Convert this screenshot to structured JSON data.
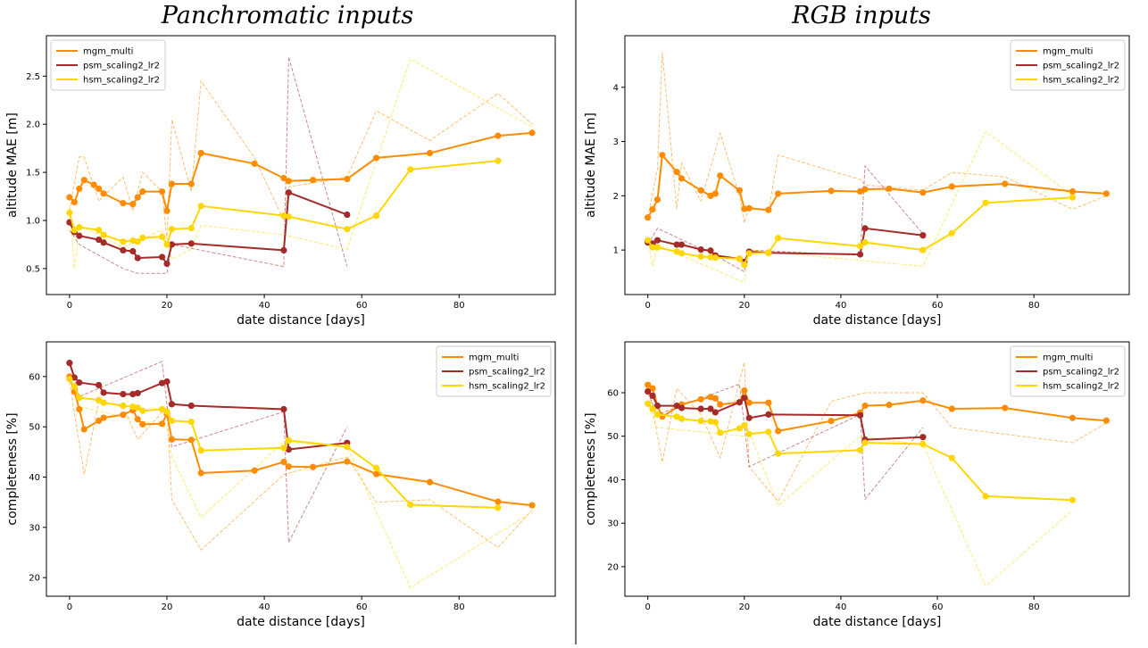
{
  "column_titles": [
    "Panchromatic inputs",
    "RGB inputs"
  ],
  "chart_data": [
    {
      "type": "line",
      "xlabel": "date distance [days]",
      "ylabel": "altitude MAE [m]",
      "legend": "upper left",
      "xlim": [
        -4.75,
        99.75
      ],
      "xticks": [
        0,
        20,
        40,
        60,
        80
      ],
      "ylim": [
        0.23,
        2.92
      ],
      "yticks": [
        0.5,
        {
          "value": 1,
          "label": "1.0"
        },
        1.5,
        {
          "value": 2,
          "label": "2.0"
        },
        2.5
      ],
      "series": [
        {
          "name": "mgm_multi",
          "color": "#ff8c00",
          "x": [
            0,
            1,
            2,
            3,
            5,
            6,
            7,
            11,
            13,
            14,
            15,
            19,
            20,
            21,
            25,
            27,
            38,
            44,
            45,
            50,
            57,
            63,
            74,
            88,
            95
          ],
          "values": [
            1.24,
            1.19,
            1.33,
            1.42,
            1.37,
            1.33,
            1.28,
            1.18,
            1.17,
            1.24,
            1.3,
            1.3,
            1.1,
            1.38,
            1.38,
            1.7,
            1.59,
            1.44,
            1.41,
            1.42,
            1.43,
            1.65,
            1.7,
            1.88,
            1.91
          ]
        },
        {
          "name": "psm_scaling2_lr2",
          "color": "#a52a2a",
          "x": [
            0,
            1,
            2,
            6,
            7,
            11,
            13,
            14,
            19,
            20,
            21,
            25,
            44,
            45,
            57
          ],
          "values": [
            0.98,
            0.88,
            0.84,
            0.8,
            0.77,
            0.69,
            0.68,
            0.61,
            0.62,
            0.55,
            0.75,
            0.76,
            0.69,
            1.29,
            1.06
          ]
        },
        {
          "name": "hsm_scaling2_lr2",
          "color": "#ffd700",
          "x": [
            0,
            1,
            2,
            6,
            7,
            11,
            13,
            14,
            15,
            19,
            20,
            21,
            25,
            27,
            44,
            45,
            57,
            63,
            70,
            88
          ],
          "values": [
            1.08,
            0.9,
            0.93,
            0.9,
            0.85,
            0.78,
            0.79,
            0.78,
            0.82,
            0.83,
            0.75,
            0.91,
            0.92,
            1.15,
            1.05,
            1.04,
            0.91,
            1.05,
            1.53,
            1.62
          ]
        },
        {
          "style": "dashed",
          "color": "#ff8c00",
          "x": [
            0,
            2,
            3,
            6,
            11,
            13,
            15,
            19,
            20,
            21,
            25,
            27,
            38,
            44,
            45,
            57,
            63,
            74,
            88,
            95
          ],
          "values": [
            1.1,
            1.66,
            1.66,
            1.2,
            1.45,
            1.1,
            1.5,
            1.3,
            0.8,
            2.05,
            1.3,
            2.45,
            1.65,
            1.0,
            1.35,
            1.45,
            2.14,
            1.83,
            2.32,
            2.0
          ]
        },
        {
          "style": "dashed",
          "color": "#a52a2a",
          "x": [
            0,
            2,
            11,
            14,
            20,
            21,
            44,
            45,
            57
          ],
          "values": [
            0.9,
            0.75,
            0.5,
            0.45,
            0.45,
            0.75,
            0.52,
            2.7,
            0.52
          ]
        },
        {
          "style": "dashed",
          "color": "#ffd700",
          "x": [
            0,
            1,
            2,
            11,
            19,
            21,
            25,
            27,
            44,
            57,
            70,
            95
          ],
          "values": [
            1.15,
            0.5,
            0.95,
            0.72,
            0.9,
            0.6,
            0.7,
            0.95,
            0.85,
            0.7,
            2.68,
            1.97
          ]
        }
      ]
    },
    {
      "type": "line",
      "xlabel": "date distance [days]",
      "ylabel": "altitude MAE [m]",
      "legend": "upper right",
      "xlim": [
        -4.75,
        99.75
      ],
      "xticks": [
        0,
        20,
        40,
        60,
        80
      ],
      "ylim": [
        0.18,
        4.95
      ],
      "yticks": [
        1,
        2,
        3,
        4
      ],
      "series": [
        {
          "name": "mgm_multi",
          "color": "#ff8c00",
          "x": [
            0,
            1,
            2,
            3,
            6,
            7,
            11,
            13,
            14,
            15,
            19,
            20,
            21,
            25,
            27,
            38,
            44,
            45,
            50,
            57,
            63,
            74,
            88,
            95
          ],
          "values": [
            1.6,
            1.75,
            1.93,
            2.75,
            2.44,
            2.32,
            2.1,
            2.0,
            2.04,
            2.37,
            2.1,
            1.76,
            1.77,
            1.74,
            2.04,
            2.09,
            2.08,
            2.12,
            2.13,
            2.06,
            2.17,
            2.22,
            2.08,
            2.04
          ]
        },
        {
          "name": "psm_scaling2_lr2",
          "color": "#a52a2a",
          "x": [
            0,
            1,
            2,
            6,
            7,
            11,
            13,
            14,
            19,
            20,
            21,
            25,
            44,
            45,
            57
          ],
          "values": [
            1.14,
            1.12,
            1.18,
            1.1,
            1.1,
            1.01,
            0.99,
            0.9,
            0.84,
            0.78,
            0.97,
            0.95,
            0.92,
            1.4,
            1.27
          ]
        },
        {
          "name": "hsm_scaling2_lr2",
          "color": "#ffd700",
          "x": [
            0,
            1,
            2,
            6,
            7,
            11,
            13,
            14,
            19,
            20,
            21,
            25,
            27,
            44,
            45,
            57,
            63,
            70,
            88
          ],
          "values": [
            1.18,
            1.05,
            1.05,
            0.97,
            0.94,
            0.88,
            0.87,
            0.86,
            0.84,
            0.73,
            0.94,
            0.95,
            1.22,
            1.07,
            1.14,
            1.0,
            1.31,
            1.87,
            1.97
          ]
        },
        {
          "style": "dashed",
          "color": "#ff8c00",
          "x": [
            0,
            2,
            3,
            6,
            7,
            11,
            15,
            19,
            20,
            21,
            25,
            27,
            44,
            45,
            57,
            63,
            74,
            88,
            95
          ],
          "values": [
            1.6,
            2.5,
            4.65,
            1.75,
            2.6,
            1.9,
            3.15,
            2.0,
            1.5,
            1.8,
            1.7,
            2.75,
            2.3,
            2.2,
            2.1,
            2.43,
            2.35,
            1.75,
            2.0
          ]
        },
        {
          "style": "dashed",
          "color": "#a52a2a",
          "x": [
            0,
            2,
            14,
            20,
            21,
            44,
            45,
            57
          ],
          "values": [
            1.1,
            1.4,
            0.9,
            0.6,
            1.0,
            0.9,
            2.55,
            1.3
          ]
        },
        {
          "style": "dashed",
          "color": "#ffd700",
          "x": [
            0,
            1,
            2,
            20,
            21,
            57,
            70,
            88
          ],
          "values": [
            1.2,
            0.7,
            1.1,
            0.4,
            1.0,
            0.7,
            3.18,
            2.0
          ]
        }
      ]
    },
    {
      "type": "line",
      "xlabel": "date distance [days]",
      "ylabel": "completeness [%]",
      "legend": "upper right",
      "xlim": [
        -4.75,
        99.75
      ],
      "xticks": [
        0,
        20,
        40,
        60,
        80
      ],
      "ylim": [
        16.3,
        66.9
      ],
      "yticks": [
        20,
        30,
        40,
        50,
        60
      ],
      "series": [
        {
          "name": "mgm_multi",
          "color": "#ff8c00",
          "x": [
            0,
            1,
            2,
            3,
            6,
            7,
            11,
            13,
            14,
            15,
            19,
            20,
            21,
            25,
            27,
            38,
            44,
            45,
            50,
            57,
            63,
            74,
            88,
            95
          ],
          "values": [
            60.0,
            57.0,
            53.5,
            49.5,
            51.2,
            51.8,
            52.4,
            53.3,
            51.5,
            50.5,
            50.6,
            52.5,
            47.5,
            47.4,
            40.8,
            41.3,
            43.0,
            42.1,
            42.0,
            43.1,
            40.6,
            39.0,
            35.1,
            34.4
          ]
        },
        {
          "name": "psm_scaling2_lr2",
          "color": "#a52a2a",
          "x": [
            0,
            1,
            2,
            6,
            7,
            11,
            13,
            14,
            19,
            20,
            21,
            25,
            44,
            45,
            57
          ],
          "values": [
            62.7,
            59.8,
            58.8,
            58.3,
            56.8,
            56.5,
            56.5,
            56.7,
            58.7,
            59.0,
            54.5,
            54.2,
            53.5,
            45.5,
            46.8
          ]
        },
        {
          "name": "hsm_scaling2_lr2",
          "color": "#ffd700",
          "x": [
            0,
            1,
            2,
            6,
            7,
            11,
            13,
            14,
            15,
            19,
            20,
            21,
            25,
            27,
            44,
            45,
            57,
            63,
            70,
            88
          ],
          "values": [
            59.5,
            58.0,
            55.8,
            55.3,
            54.8,
            54.2,
            54.0,
            53.8,
            53.2,
            53.5,
            53.0,
            51.2,
            51.0,
            45.3,
            45.8,
            47.3,
            46.0,
            41.8,
            34.5,
            33.9
          ]
        },
        {
          "style": "dashed",
          "color": "#ff8c00",
          "x": [
            0,
            3,
            6,
            11,
            14,
            20,
            21,
            27,
            44,
            57,
            63,
            74,
            88,
            95
          ],
          "values": [
            59,
            40.5,
            55,
            54,
            47.5,
            54,
            35.5,
            25.5,
            40.5,
            44,
            35,
            35.5,
            26,
            33.5
          ]
        },
        {
          "style": "dashed",
          "color": "#a52a2a",
          "x": [
            0,
            2,
            19,
            21,
            44,
            45,
            57
          ],
          "values": [
            63,
            56,
            63,
            46,
            53,
            27,
            50
          ]
        },
        {
          "style": "dashed",
          "color": "#ffd700",
          "x": [
            0,
            2,
            20,
            21,
            27,
            44,
            57,
            70,
            95
          ],
          "values": [
            60,
            54,
            50,
            44,
            32,
            47,
            46,
            18,
            33
          ]
        }
      ]
    },
    {
      "type": "line",
      "xlabel": "date distance [days]",
      "ylabel": "completeness [%]",
      "legend": "upper right",
      "xlim": [
        -4.75,
        99.75
      ],
      "xticks": [
        0,
        20,
        40,
        60,
        80
      ],
      "ylim": [
        13.2,
        71.7
      ],
      "yticks": [
        20,
        30,
        40,
        50,
        60
      ],
      "series": [
        {
          "name": "mgm_multi",
          "color": "#ff8c00",
          "x": [
            0,
            1,
            2,
            3,
            7,
            11,
            13,
            14,
            15,
            19,
            20,
            21,
            25,
            27,
            38,
            44,
            45,
            50,
            57,
            63,
            74,
            88,
            95
          ],
          "values": [
            61.8,
            61.0,
            57.0,
            54.5,
            57.3,
            58.5,
            59.0,
            58.7,
            57.3,
            57.8,
            60.5,
            57.7,
            57.7,
            51.2,
            53.5,
            55.4,
            57.0,
            57.2,
            58.2,
            56.3,
            56.5,
            54.2,
            53.6
          ]
        },
        {
          "name": "psm_scaling2_lr2",
          "color": "#a52a2a",
          "x": [
            0,
            1,
            2,
            6,
            7,
            11,
            13,
            14,
            19,
            20,
            21,
            25,
            44,
            45,
            57
          ],
          "values": [
            60.3,
            59.3,
            57.0,
            57.0,
            56.5,
            56.3,
            56.3,
            55.5,
            57.8,
            58.8,
            54.2,
            55.0,
            54.8,
            49.2,
            49.8
          ]
        },
        {
          "name": "hsm_scaling2_lr2",
          "color": "#ffd700",
          "x": [
            0,
            1,
            2,
            6,
            7,
            11,
            13,
            14,
            15,
            19,
            20,
            21,
            25,
            27,
            44,
            45,
            57,
            63,
            70,
            88
          ],
          "values": [
            57.5,
            56.3,
            55.0,
            54.5,
            54.0,
            53.5,
            53.4,
            53.2,
            50.8,
            51.8,
            52.5,
            50.5,
            51.0,
            46.0,
            46.8,
            48.5,
            48.2,
            45.0,
            36.2,
            35.3
          ]
        },
        {
          "style": "dashed",
          "color": "#ff8c00",
          "x": [
            0,
            3,
            6,
            11,
            15,
            20,
            21,
            27,
            38,
            45,
            57,
            63,
            88,
            95
          ],
          "values": [
            62,
            44,
            61,
            55,
            45,
            67,
            43,
            35,
            58,
            60,
            60,
            52,
            48.5,
            53
          ]
        },
        {
          "style": "dashed",
          "color": "#a52a2a",
          "x": [
            0,
            2,
            19,
            21,
            44,
            45,
            57
          ],
          "values": [
            60,
            55,
            62,
            43,
            55,
            35.5,
            52
          ]
        },
        {
          "style": "dashed",
          "color": "#ffd700",
          "x": [
            0,
            2,
            20,
            21,
            27,
            44,
            57,
            70,
            88
          ],
          "values": [
            57,
            52,
            50,
            51,
            34,
            50,
            48,
            15.5,
            33
          ]
        }
      ]
    }
  ]
}
